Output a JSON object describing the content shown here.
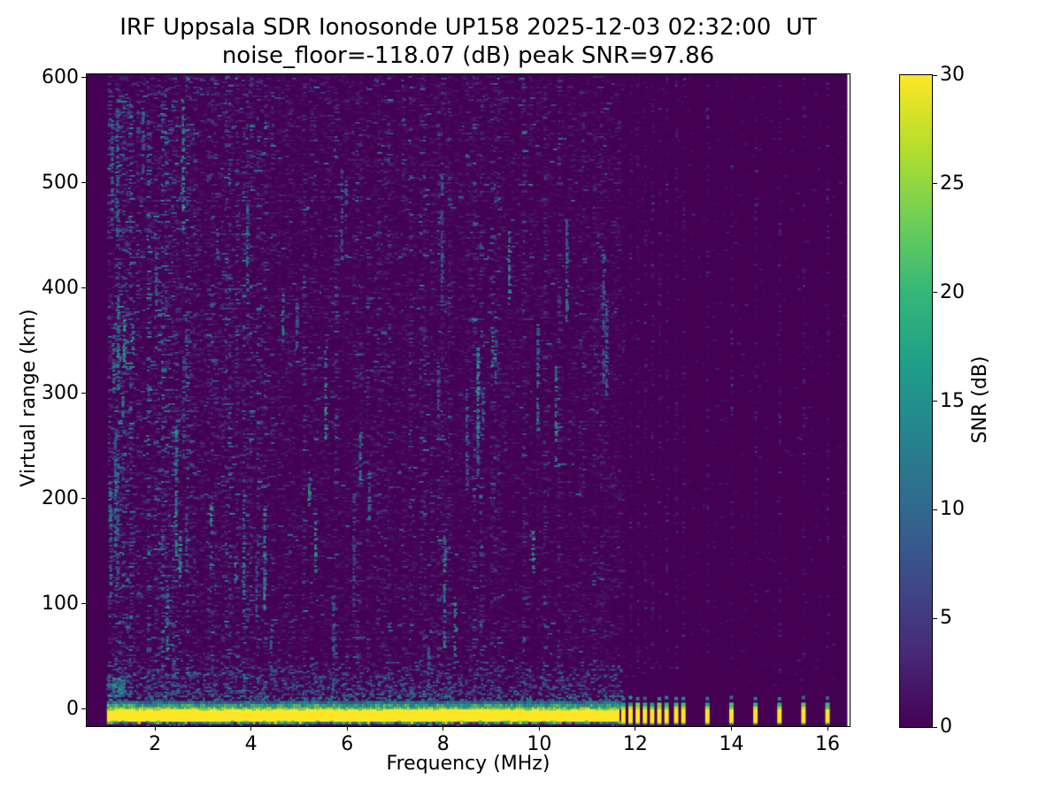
{
  "colors": {
    "background": "#ffffff",
    "spines": "#000000",
    "text": "#000000"
  },
  "chart_data": {
    "type": "heatmap",
    "title": "IRF Uppsala SDR Ionosonde UP158 2025-12-03 02:32:00  UT",
    "subtitle": "noise_floor=-118.07 (dB) peak SNR=97.86",
    "station": "UP158",
    "datetime_ut": "2025-12-03 02:32:00",
    "noise_floor_db": -118.07,
    "peak_snr_db": 97.86,
    "xlabel": "Frequency (MHz)",
    "ylabel": "Virtual range (km)",
    "xlim": [
      0.58,
      16.46
    ],
    "ylim": [
      -16,
      603
    ],
    "x_ticks": [
      2,
      4,
      6,
      8,
      10,
      12,
      14,
      16
    ],
    "y_ticks": [
      0,
      100,
      200,
      300,
      400,
      500,
      600
    ],
    "grid": false,
    "legend_position": "colorbar-right",
    "colorbar": {
      "label": "SNR (dB)",
      "ticks": [
        0,
        5,
        10,
        15,
        20,
        25,
        30
      ],
      "range": [
        0,
        30
      ],
      "colormap": "viridis",
      "stops": [
        "#440154",
        "#482878",
        "#3e4989",
        "#31688e",
        "#26828e",
        "#1f9e89",
        "#35b779",
        "#6ece58",
        "#b5de2b",
        "#fde725"
      ]
    },
    "sweep": {
      "start_mhz": 1.0,
      "continuous_end_mhz": 11.67,
      "discrete_mhz": [
        11.75,
        11.9,
        12.05,
        12.2,
        12.35,
        12.5,
        12.65,
        12.85,
        13.0,
        13.5,
        14.0,
        14.5,
        15.0,
        15.5,
        16.0
      ]
    },
    "features": {
      "ground_pulse_band": {
        "top_km": 8,
        "bottom_km": -12,
        "snr_db": 30
      },
      "background_snr_db": 0,
      "noise_speckles_max_db": 18,
      "description": "Dark viridis background with faint speckle noise and teal vertical streaks; saturated yellow ground-return band at ~0 km across all sounded frequencies, continuous to ~11.7 MHz then discrete frequency steps."
    }
  }
}
